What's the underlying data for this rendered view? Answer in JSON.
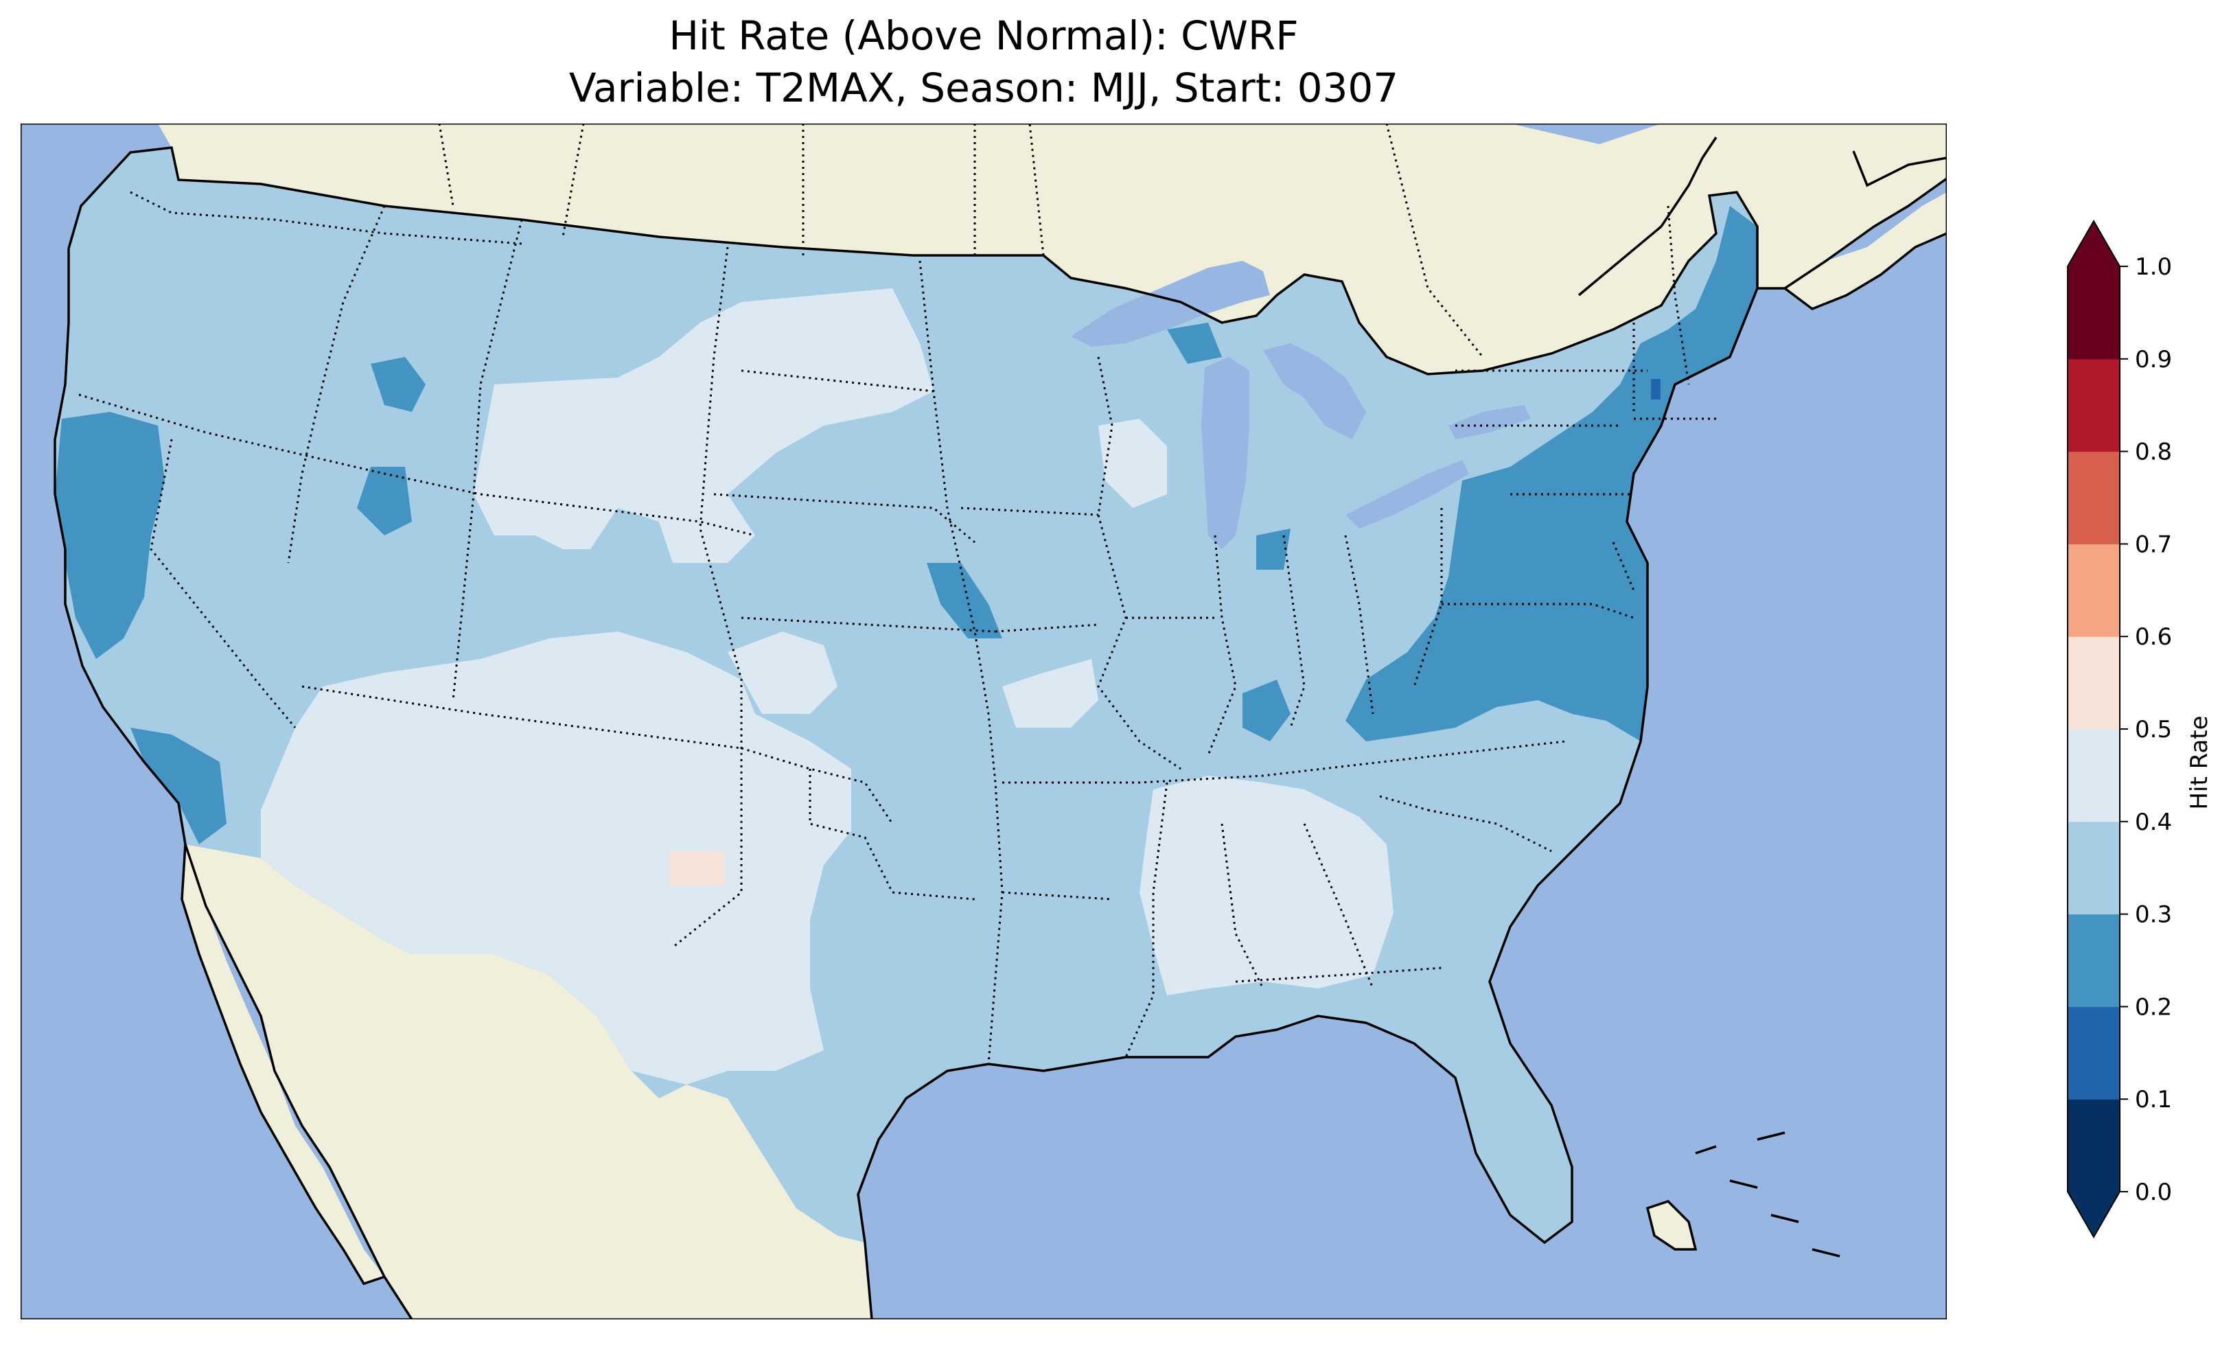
{
  "title": {
    "line1": "Hit Rate (Above Normal): CWRF",
    "line2": "Variable: T2MAX, Season: MJJ, Start: 0307"
  },
  "colors": {
    "ocean": "#97b6e1",
    "land": "#efefdb",
    "lakes": "#97b6e1"
  },
  "colorbar": {
    "label": "Hit Rate",
    "ticks": [
      "0.0",
      "0.1",
      "0.2",
      "0.3",
      "0.4",
      "0.5",
      "0.6",
      "0.7",
      "0.8",
      "0.9",
      "1.0"
    ],
    "bins": [
      {
        "from": 0.0,
        "to": 0.1,
        "color": "#053061"
      },
      {
        "from": 0.1,
        "to": 0.2,
        "color": "#2166ac"
      },
      {
        "from": 0.2,
        "to": 0.3,
        "color": "#4393c3"
      },
      {
        "from": 0.3,
        "to": 0.4,
        "color": "#a6cde3"
      },
      {
        "from": 0.4,
        "to": 0.5,
        "color": "#dce9f3"
      },
      {
        "from": 0.5,
        "to": 0.6,
        "color": "#f8e3d9"
      },
      {
        "from": 0.6,
        "to": 0.7,
        "color": "#f4a582"
      },
      {
        "from": 0.7,
        "to": 0.8,
        "color": "#d6604d"
      },
      {
        "from": 0.8,
        "to": 0.9,
        "color": "#b2182b"
      },
      {
        "from": 0.9,
        "to": 1.0,
        "color": "#67001f"
      }
    ],
    "extend": "both",
    "under_color": "#053061",
    "over_color": "#67001f"
  }
}
